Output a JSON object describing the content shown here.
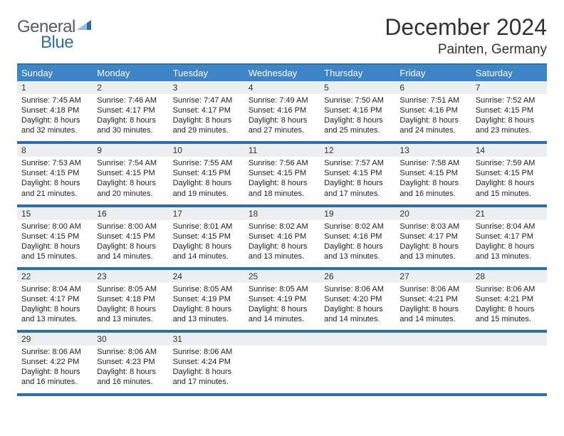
{
  "logo": {
    "word1": "General",
    "word2": "Blue"
  },
  "title": "December 2024",
  "location": "Painten, Germany",
  "colors": {
    "header_bg": "#3d85c6",
    "border": "#2f6ea8",
    "daynum_bg": "#eceeef",
    "text": "#333333"
  },
  "day_labels": [
    "Sunday",
    "Monday",
    "Tuesday",
    "Wednesday",
    "Thursday",
    "Friday",
    "Saturday"
  ],
  "weeks": [
    {
      "nums": [
        "1",
        "2",
        "3",
        "4",
        "5",
        "6",
        "7"
      ],
      "cells": [
        {
          "sunrise": "7:45 AM",
          "sunset": "4:18 PM",
          "day_h": 8,
          "day_m": 32
        },
        {
          "sunrise": "7:46 AM",
          "sunset": "4:17 PM",
          "day_h": 8,
          "day_m": 30
        },
        {
          "sunrise": "7:47 AM",
          "sunset": "4:17 PM",
          "day_h": 8,
          "day_m": 29
        },
        {
          "sunrise": "7:49 AM",
          "sunset": "4:16 PM",
          "day_h": 8,
          "day_m": 27
        },
        {
          "sunrise": "7:50 AM",
          "sunset": "4:16 PM",
          "day_h": 8,
          "day_m": 25
        },
        {
          "sunrise": "7:51 AM",
          "sunset": "4:16 PM",
          "day_h": 8,
          "day_m": 24
        },
        {
          "sunrise": "7:52 AM",
          "sunset": "4:15 PM",
          "day_h": 8,
          "day_m": 23
        }
      ]
    },
    {
      "nums": [
        "8",
        "9",
        "10",
        "11",
        "12",
        "13",
        "14"
      ],
      "cells": [
        {
          "sunrise": "7:53 AM",
          "sunset": "4:15 PM",
          "day_h": 8,
          "day_m": 21
        },
        {
          "sunrise": "7:54 AM",
          "sunset": "4:15 PM",
          "day_h": 8,
          "day_m": 20
        },
        {
          "sunrise": "7:55 AM",
          "sunset": "4:15 PM",
          "day_h": 8,
          "day_m": 19
        },
        {
          "sunrise": "7:56 AM",
          "sunset": "4:15 PM",
          "day_h": 8,
          "day_m": 18
        },
        {
          "sunrise": "7:57 AM",
          "sunset": "4:15 PM",
          "day_h": 8,
          "day_m": 17
        },
        {
          "sunrise": "7:58 AM",
          "sunset": "4:15 PM",
          "day_h": 8,
          "day_m": 16
        },
        {
          "sunrise": "7:59 AM",
          "sunset": "4:15 PM",
          "day_h": 8,
          "day_m": 15
        }
      ]
    },
    {
      "nums": [
        "15",
        "16",
        "17",
        "18",
        "19",
        "20",
        "21"
      ],
      "cells": [
        {
          "sunrise": "8:00 AM",
          "sunset": "4:15 PM",
          "day_h": 8,
          "day_m": 15
        },
        {
          "sunrise": "8:00 AM",
          "sunset": "4:15 PM",
          "day_h": 8,
          "day_m": 14
        },
        {
          "sunrise": "8:01 AM",
          "sunset": "4:15 PM",
          "day_h": 8,
          "day_m": 14
        },
        {
          "sunrise": "8:02 AM",
          "sunset": "4:16 PM",
          "day_h": 8,
          "day_m": 13
        },
        {
          "sunrise": "8:02 AM",
          "sunset": "4:16 PM",
          "day_h": 8,
          "day_m": 13
        },
        {
          "sunrise": "8:03 AM",
          "sunset": "4:17 PM",
          "day_h": 8,
          "day_m": 13
        },
        {
          "sunrise": "8:04 AM",
          "sunset": "4:17 PM",
          "day_h": 8,
          "day_m": 13
        }
      ]
    },
    {
      "nums": [
        "22",
        "23",
        "24",
        "25",
        "26",
        "27",
        "28"
      ],
      "cells": [
        {
          "sunrise": "8:04 AM",
          "sunset": "4:17 PM",
          "day_h": 8,
          "day_m": 13
        },
        {
          "sunrise": "8:05 AM",
          "sunset": "4:18 PM",
          "day_h": 8,
          "day_m": 13
        },
        {
          "sunrise": "8:05 AM",
          "sunset": "4:19 PM",
          "day_h": 8,
          "day_m": 13
        },
        {
          "sunrise": "8:05 AM",
          "sunset": "4:19 PM",
          "day_h": 8,
          "day_m": 14
        },
        {
          "sunrise": "8:06 AM",
          "sunset": "4:20 PM",
          "day_h": 8,
          "day_m": 14
        },
        {
          "sunrise": "8:06 AM",
          "sunset": "4:21 PM",
          "day_h": 8,
          "day_m": 14
        },
        {
          "sunrise": "8:06 AM",
          "sunset": "4:21 PM",
          "day_h": 8,
          "day_m": 15
        }
      ]
    },
    {
      "nums": [
        "29",
        "30",
        "31",
        "",
        "",
        "",
        ""
      ],
      "cells": [
        {
          "sunrise": "8:06 AM",
          "sunset": "4:22 PM",
          "day_h": 8,
          "day_m": 16
        },
        {
          "sunrise": "8:06 AM",
          "sunset": "4:23 PM",
          "day_h": 8,
          "day_m": 16
        },
        {
          "sunrise": "8:06 AM",
          "sunset": "4:24 PM",
          "day_h": 8,
          "day_m": 17
        },
        null,
        null,
        null,
        null
      ]
    }
  ],
  "labels": {
    "sunrise": "Sunrise:",
    "sunset": "Sunset:",
    "daylight": "Daylight:",
    "hours": "hours",
    "and": "and",
    "minutes": "minutes."
  }
}
